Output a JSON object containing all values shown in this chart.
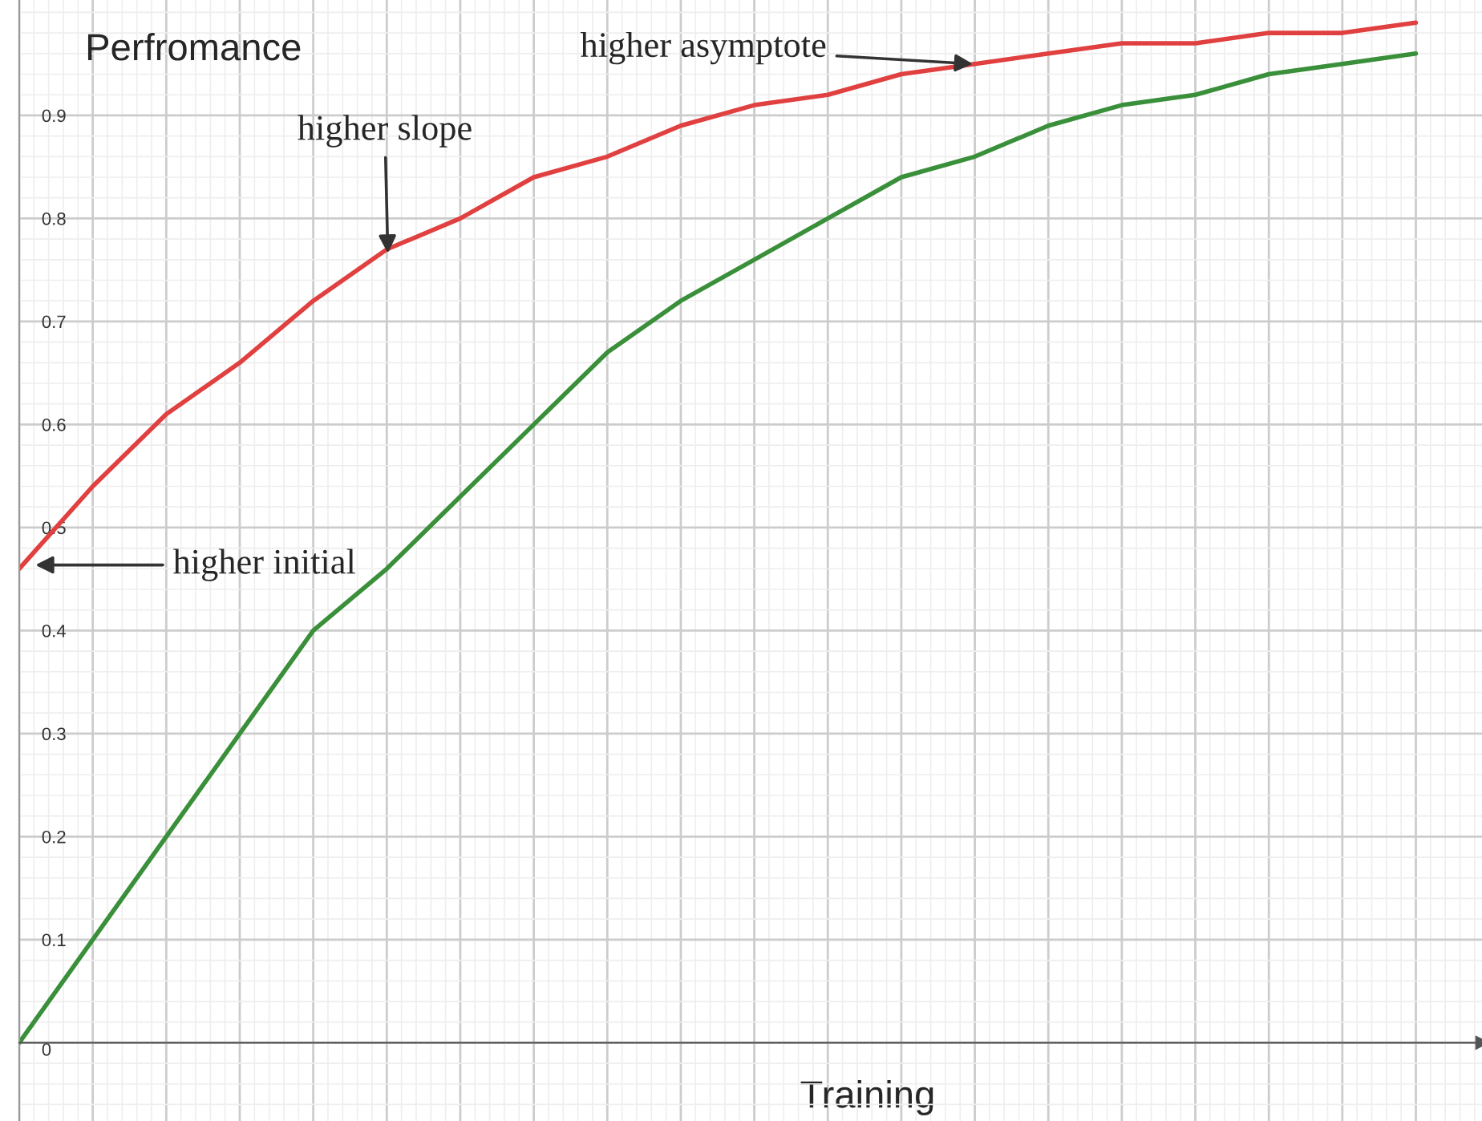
{
  "chart_data": {
    "type": "line",
    "xlabel": "Training",
    "ylabel": "Perfromance",
    "categories": [
      null,
      null,
      null,
      null,
      null,
      null,
      null,
      null,
      null,
      null,
      null,
      null,
      null,
      null,
      null,
      null,
      null,
      null,
      null,
      null
    ],
    "series": [
      {
        "color": "#e0403f",
        "values": [
          0.46,
          0.54,
          0.61,
          0.66,
          0.72,
          0.77,
          0.8,
          0.84,
          0.86,
          0.89,
          0.91,
          0.92,
          0.94,
          0.95,
          0.96,
          0.97,
          0.97,
          0.98,
          0.98,
          0.99
        ]
      },
      {
        "color": "#3a8f3a",
        "values": [
          0.0,
          0.1,
          0.2,
          0.3,
          0.4,
          0.46,
          0.53,
          0.6,
          0.67,
          0.72,
          0.76,
          0.8,
          0.84,
          0.86,
          0.89,
          0.91,
          0.92,
          0.94,
          0.95,
          0.96
        ]
      }
    ],
    "ylim": [
      -0.076,
      1.012
    ],
    "yticks": [
      {
        "value": 0,
        "label": "0"
      },
      0.1,
      0.2,
      0.3,
      0.4,
      0.5,
      0.6,
      0.7,
      0.8,
      0.9
    ],
    "grid": true,
    "annotations": [
      "higher initial",
      "higher slope",
      "higher asymptote"
    ]
  }
}
